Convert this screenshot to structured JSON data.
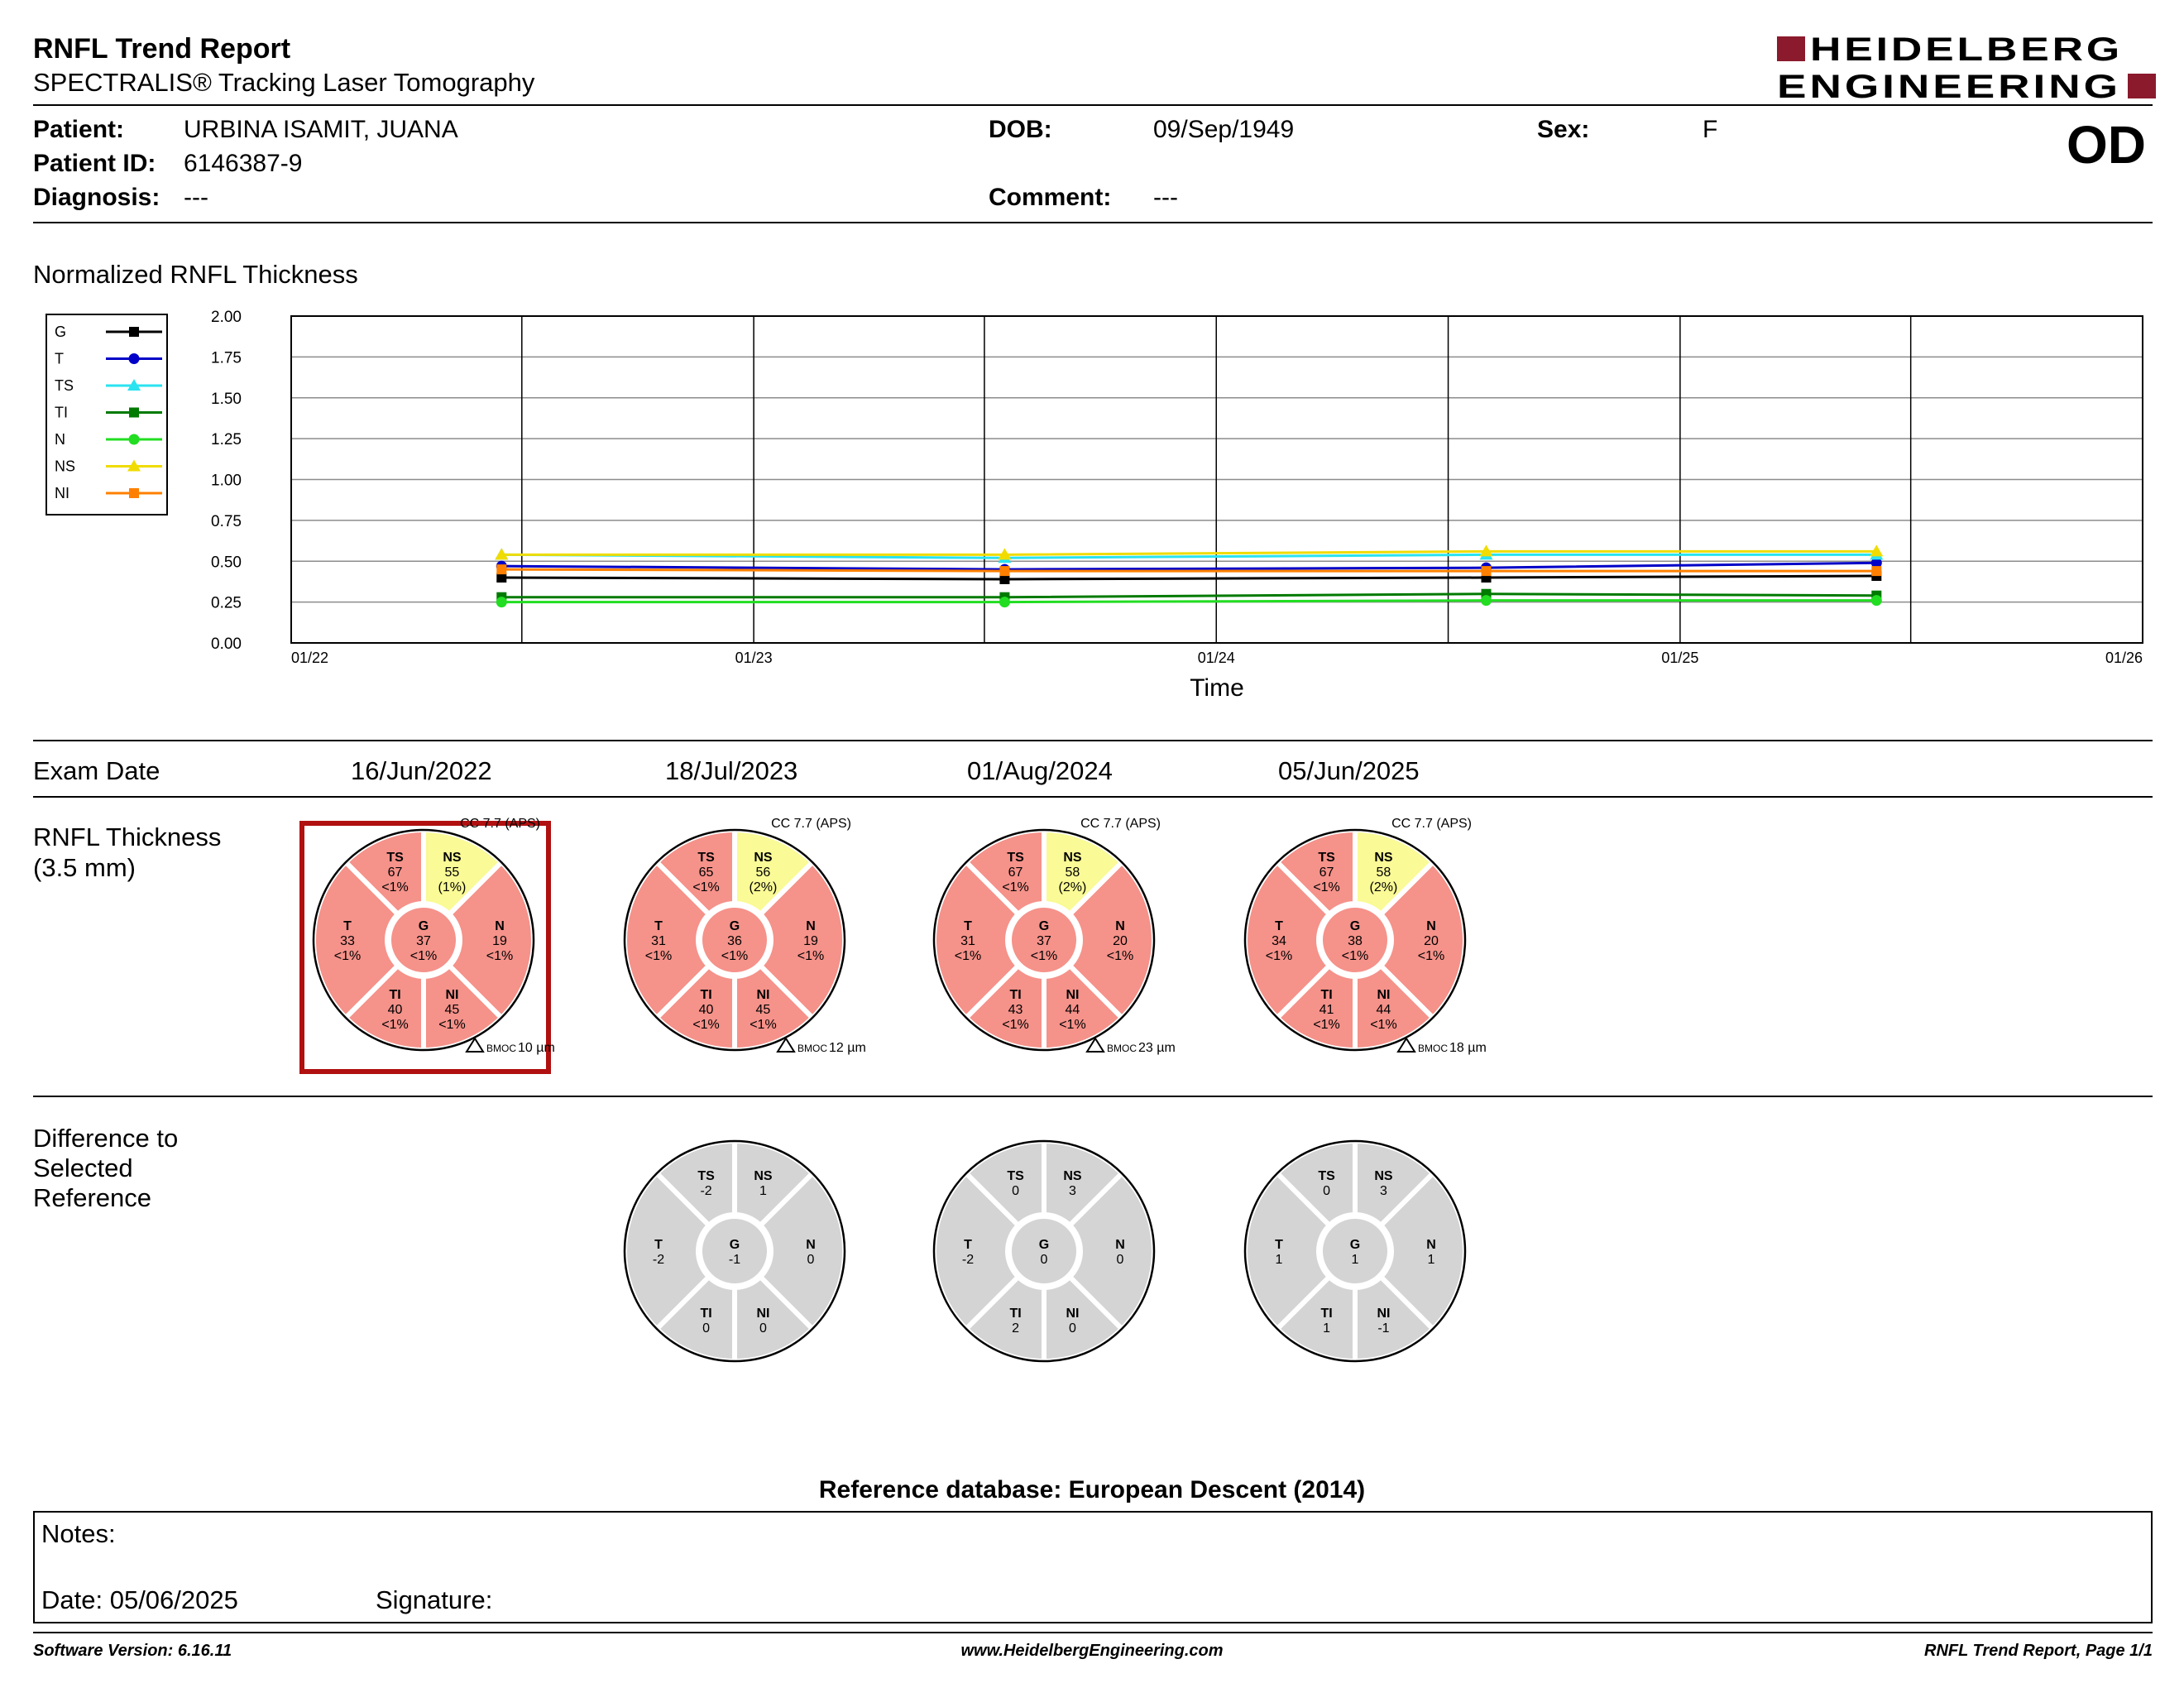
{
  "header": {
    "title": "RNFL Trend Report",
    "subtitle": "SPECTRALIS® Tracking Laser Tomography",
    "logo_line1": "HEIDELBERG",
    "logo_line2": "ENGINEERING",
    "brand_color": "#8b1a2c"
  },
  "patient": {
    "patient_label": "Patient:",
    "patient_value": "URBINA ISAMIT, JUANA",
    "id_label": "Patient ID:",
    "id_value": "6146387-9",
    "diagnosis_label": "Diagnosis:",
    "diagnosis_value": "---",
    "dob_label": "DOB:",
    "dob_value": "09/Sep/1949",
    "comment_label": "Comment:",
    "comment_value": "---",
    "sex_label": "Sex:",
    "sex_value": "F",
    "eye": "OD"
  },
  "section_titles": {
    "normalized": "Normalized RNFL Thickness",
    "exam_date": "Exam Date",
    "rnfl_line1": "RNFL Thickness",
    "rnfl_line2": "(3.5 mm)",
    "diff_line1": "Difference to",
    "diff_line2": "Selected",
    "diff_line3": "Reference"
  },
  "chart_data": {
    "type": "line",
    "title": "Normalized RNFL Thickness",
    "xlabel": "Time",
    "ylabel": "",
    "ylim": [
      0,
      2.0
    ],
    "yticks": [
      "0.00",
      "0.25",
      "0.50",
      "0.75",
      "1.00",
      "1.25",
      "1.50",
      "1.75",
      "2.00"
    ],
    "xlim": [
      "2022-01-01",
      "2026-01-01"
    ],
    "xticks": [
      "01/22",
      "01/23",
      "01/24",
      "01/25",
      "01/26"
    ],
    "grid": true,
    "legend_position": "left",
    "x": [
      "2022-06-16",
      "2023-07-18",
      "2024-08-01",
      "2025-06-05"
    ],
    "series": [
      {
        "name": "G",
        "color": "#000000",
        "marker": "square",
        "values": [
          0.4,
          0.39,
          0.4,
          0.41
        ]
      },
      {
        "name": "T",
        "color": "#0000c8",
        "marker": "circle",
        "values": [
          0.47,
          0.45,
          0.46,
          0.49
        ]
      },
      {
        "name": "TS",
        "color": "#29e3f0",
        "marker": "triangle",
        "values": [
          0.54,
          0.52,
          0.54,
          0.54
        ]
      },
      {
        "name": "TI",
        "color": "#007a00",
        "marker": "square",
        "values": [
          0.28,
          0.28,
          0.3,
          0.29
        ]
      },
      {
        "name": "N",
        "color": "#22dd22",
        "marker": "circle",
        "values": [
          0.25,
          0.25,
          0.26,
          0.26
        ]
      },
      {
        "name": "NS",
        "color": "#f0dc00",
        "marker": "triangle",
        "values": [
          0.54,
          0.54,
          0.56,
          0.56
        ]
      },
      {
        "name": "NI",
        "color": "#ff8000",
        "marker": "square",
        "values": [
          0.45,
          0.44,
          0.44,
          0.44
        ]
      }
    ]
  },
  "exams": [
    {
      "date": "16/Jun/2022",
      "selected": true,
      "cc": "CC 7.7 (APS)",
      "bmoc": "10 µm",
      "sectors": {
        "G": {
          "label": "G",
          "value": "37",
          "pct": "<1%",
          "color": "#f5928a"
        },
        "T": {
          "label": "T",
          "value": "33",
          "pct": "<1%",
          "color": "#f5928a"
        },
        "TS": {
          "label": "TS",
          "value": "67",
          "pct": "<1%",
          "color": "#f5928a"
        },
        "NS": {
          "label": "NS",
          "value": "55",
          "pct": "(1%)",
          "color": "#fafa96"
        },
        "N": {
          "label": "N",
          "value": "19",
          "pct": "<1%",
          "color": "#f5928a"
        },
        "NI": {
          "label": "NI",
          "value": "45",
          "pct": "<1%",
          "color": "#f5928a"
        },
        "TI": {
          "label": "TI",
          "value": "40",
          "pct": "<1%",
          "color": "#f5928a"
        }
      },
      "diff": null
    },
    {
      "date": "18/Jul/2023",
      "selected": false,
      "cc": "CC 7.7 (APS)",
      "bmoc": "12 µm",
      "sectors": {
        "G": {
          "label": "G",
          "value": "36",
          "pct": "<1%",
          "color": "#f5928a"
        },
        "T": {
          "label": "T",
          "value": "31",
          "pct": "<1%",
          "color": "#f5928a"
        },
        "TS": {
          "label": "TS",
          "value": "65",
          "pct": "<1%",
          "color": "#f5928a"
        },
        "NS": {
          "label": "NS",
          "value": "56",
          "pct": "(2%)",
          "color": "#fafa96"
        },
        "N": {
          "label": "N",
          "value": "19",
          "pct": "<1%",
          "color": "#f5928a"
        },
        "NI": {
          "label": "NI",
          "value": "45",
          "pct": "<1%",
          "color": "#f5928a"
        },
        "TI": {
          "label": "TI",
          "value": "40",
          "pct": "<1%",
          "color": "#f5928a"
        }
      },
      "diff": {
        "G": "-1",
        "T": "-2",
        "TS": "-2",
        "NS": "1",
        "N": "0",
        "NI": "0",
        "TI": "0"
      }
    },
    {
      "date": "01/Aug/2024",
      "selected": false,
      "cc": "CC 7.7 (APS)",
      "bmoc": "23 µm",
      "sectors": {
        "G": {
          "label": "G",
          "value": "37",
          "pct": "<1%",
          "color": "#f5928a"
        },
        "T": {
          "label": "T",
          "value": "31",
          "pct": "<1%",
          "color": "#f5928a"
        },
        "TS": {
          "label": "TS",
          "value": "67",
          "pct": "<1%",
          "color": "#f5928a"
        },
        "NS": {
          "label": "NS",
          "value": "58",
          "pct": "(2%)",
          "color": "#fafa96"
        },
        "N": {
          "label": "N",
          "value": "20",
          "pct": "<1%",
          "color": "#f5928a"
        },
        "NI": {
          "label": "NI",
          "value": "44",
          "pct": "<1%",
          "color": "#f5928a"
        },
        "TI": {
          "label": "TI",
          "value": "43",
          "pct": "<1%",
          "color": "#f5928a"
        }
      },
      "diff": {
        "G": "0",
        "T": "-2",
        "TS": "0",
        "NS": "3",
        "N": "0",
        "NI": "0",
        "TI": "2"
      }
    },
    {
      "date": "05/Jun/2025",
      "selected": false,
      "cc": "CC 7.7 (APS)",
      "bmoc": "18 µm",
      "sectors": {
        "G": {
          "label": "G",
          "value": "38",
          "pct": "<1%",
          "color": "#f5928a"
        },
        "T": {
          "label": "T",
          "value": "34",
          "pct": "<1%",
          "color": "#f5928a"
        },
        "TS": {
          "label": "TS",
          "value": "67",
          "pct": "<1%",
          "color": "#f5928a"
        },
        "NS": {
          "label": "NS",
          "value": "58",
          "pct": "(2%)",
          "color": "#fafa96"
        },
        "N": {
          "label": "N",
          "value": "20",
          "pct": "<1%",
          "color": "#f5928a"
        },
        "NI": {
          "label": "NI",
          "value": "44",
          "pct": "<1%",
          "color": "#f5928a"
        },
        "TI": {
          "label": "TI",
          "value": "41",
          "pct": "<1%",
          "color": "#f5928a"
        }
      },
      "diff": {
        "G": "1",
        "T": "1",
        "TS": "0",
        "NS": "3",
        "N": "1",
        "NI": "-1",
        "TI": "1"
      }
    }
  ],
  "bmoc_label": "BMOC",
  "reference_db": "Reference database: European Descent (2014)",
  "notes": {
    "notes_label": "Notes:",
    "date_label": "Date: 05/06/2025",
    "signature_label": "Signature:"
  },
  "footer": {
    "software": "Software Version: 6.16.11",
    "website": "www.HeidelbergEngineering.com",
    "page": "RNFL Trend Report, Page 1/1"
  },
  "colors": {
    "red_sector": "#f5928a",
    "yellow_sector": "#fafa96",
    "diff_gray": "#d4d4d4",
    "selected_border": "#b01010"
  }
}
